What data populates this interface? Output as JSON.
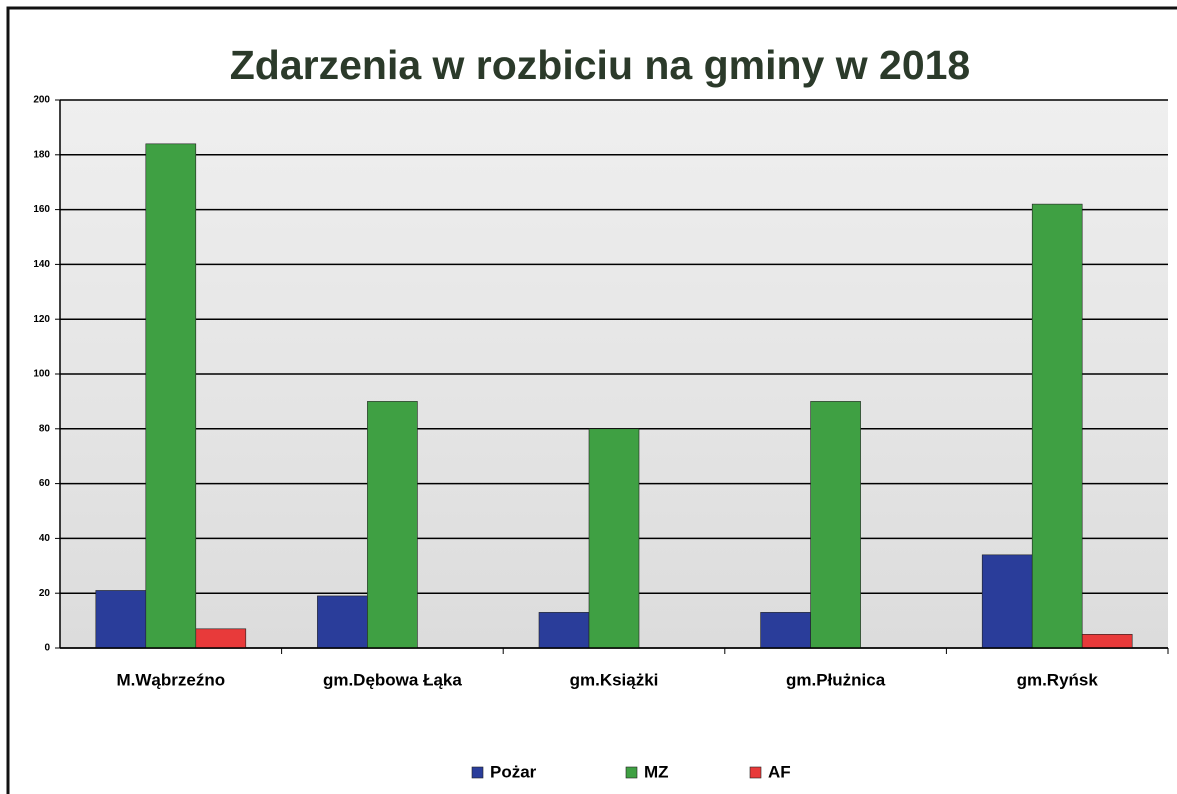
{
  "chart_data": {
    "type": "bar",
    "title": "Zdarzenia w rozbiciu na gminy w 2018",
    "categories": [
      "M.Wąbrzeźno",
      "gm.Dębowa Łąka",
      "gm.Książki",
      "gm.Płużnica",
      "gm.Ryńsk"
    ],
    "series": [
      {
        "name": "Pożar",
        "color": "#2a3d9a",
        "values": [
          21,
          19,
          13,
          13,
          34
        ]
      },
      {
        "name": "MZ",
        "color": "#3fa043",
        "values": [
          184,
          90,
          80,
          90,
          162
        ]
      },
      {
        "name": "AF",
        "color": "#e83a3a",
        "values": [
          7,
          0,
          0,
          0,
          5
        ]
      }
    ],
    "ylim": [
      0,
      200
    ],
    "yticks": [
      0,
      20,
      40,
      60,
      80,
      100,
      120,
      140,
      160,
      180,
      200
    ],
    "grid": true,
    "legend": "bottom"
  }
}
